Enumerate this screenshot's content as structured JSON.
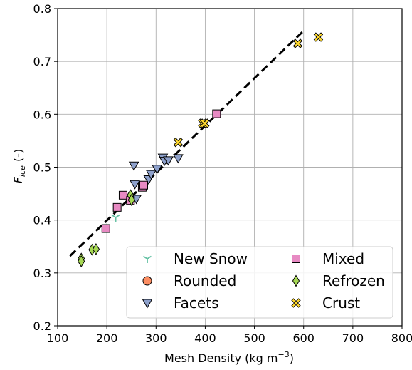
{
  "chart_data": {
    "type": "scatter",
    "title": "",
    "xlabel": "Mesh Density (kg m",
    "xlabel_sup": "−3",
    "xlabel_end": ")",
    "ylabel_main": "F",
    "ylabel_sub": "ice",
    "ylabel_end": " (-)",
    "xlim": [
      100,
      800
    ],
    "ylim": [
      0.2,
      0.8
    ],
    "xticks": [
      100,
      200,
      300,
      400,
      500,
      600,
      700,
      800
    ],
    "yticks": [
      0.2,
      0.3,
      0.4,
      0.5,
      0.6,
      0.7,
      0.8
    ],
    "xtick_labels": [
      "100",
      "200",
      "300",
      "400",
      "500",
      "600",
      "700",
      "800"
    ],
    "ytick_labels": [
      "0.2",
      "0.3",
      "0.4",
      "0.5",
      "0.6",
      "0.7",
      "0.8"
    ],
    "grid": true,
    "legend_position": "lower-right",
    "fit_line": {
      "style": "dashed",
      "color": "#000000",
      "x": [
        125,
        600
      ],
      "y": [
        0.332,
        0.758
      ]
    },
    "series": [
      {
        "name": "New Snow",
        "marker": "tri-down",
        "color": "#66c2a5",
        "points": [
          [
            218,
            0.405
          ]
        ]
      },
      {
        "name": "Rounded",
        "marker": "circle",
        "color": "#fc8d62",
        "points": []
      },
      {
        "name": "Facets",
        "marker": "triangle-down",
        "color": "#8da0cb",
        "points": [
          [
            255,
            0.503
          ],
          [
            257,
            0.468
          ],
          [
            285,
            0.477
          ],
          [
            290,
            0.487
          ],
          [
            302,
            0.497
          ],
          [
            314,
            0.518
          ],
          [
            317,
            0.512
          ],
          [
            325,
            0.513
          ],
          [
            345,
            0.517
          ],
          [
            260,
            0.44
          ]
        ]
      },
      {
        "name": "Mixed",
        "marker": "square",
        "color": "#e78ac3",
        "points": [
          [
            198,
            0.384
          ],
          [
            221,
            0.424
          ],
          [
            233,
            0.447
          ],
          [
            248,
            0.437
          ],
          [
            272,
            0.462
          ],
          [
            275,
            0.466
          ],
          [
            423,
            0.601
          ]
        ]
      },
      {
        "name": "Refrozen",
        "marker": "diamond",
        "color": "#a6d854",
        "points": [
          [
            148,
            0.327
          ],
          [
            148,
            0.322
          ],
          [
            170,
            0.344
          ],
          [
            178,
            0.345
          ],
          [
            248,
            0.447
          ],
          [
            250,
            0.438
          ]
        ]
      },
      {
        "name": "Crust",
        "marker": "x-filled",
        "color": "#ffd92f",
        "points": [
          [
            345,
            0.547
          ],
          [
            395,
            0.583
          ],
          [
            399,
            0.583
          ],
          [
            588,
            0.734
          ],
          [
            630,
            0.746
          ]
        ]
      }
    ]
  }
}
